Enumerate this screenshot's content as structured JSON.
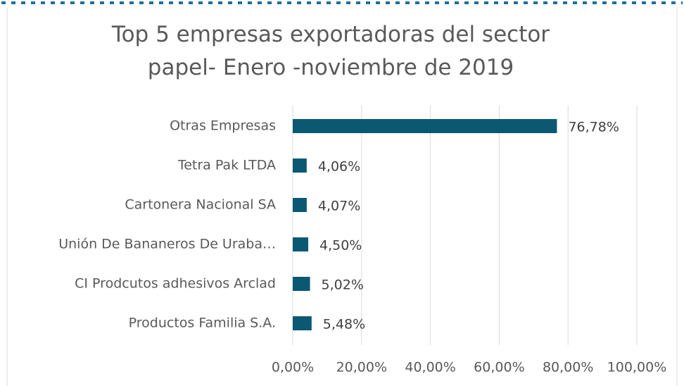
{
  "chart_data": {
    "type": "bar",
    "orientation": "horizontal",
    "title": "Top 5 empresas exportadoras del sector papel- Enero -noviembre de 2019",
    "categories": [
      "Otras Empresas",
      "Tetra Pak LTDA",
      "Cartonera Nacional SA",
      "Unión De Bananeros De Uraba…",
      "CI Prodcutos adhesivos Arclad",
      "Productos  Familia S.A."
    ],
    "values": [
      76.78,
      4.06,
      4.07,
      4.5,
      5.02,
      5.48
    ],
    "value_labels": [
      "76,78%",
      "4,06%",
      "4,07%",
      "4,50%",
      "5,02%",
      "5,48%"
    ],
    "color": "#0b5873",
    "xlim": [
      0,
      100
    ],
    "xticks": [
      {
        "value": 0,
        "label": "0,00%"
      },
      {
        "value": 20,
        "label": "20,00%"
      },
      {
        "value": 40,
        "label": "40,00%"
      },
      {
        "value": 60,
        "label": "60,00%"
      },
      {
        "value": 80,
        "label": "80,00%"
      },
      {
        "value": 100,
        "label": "100,00%"
      }
    ],
    "grid": true
  }
}
